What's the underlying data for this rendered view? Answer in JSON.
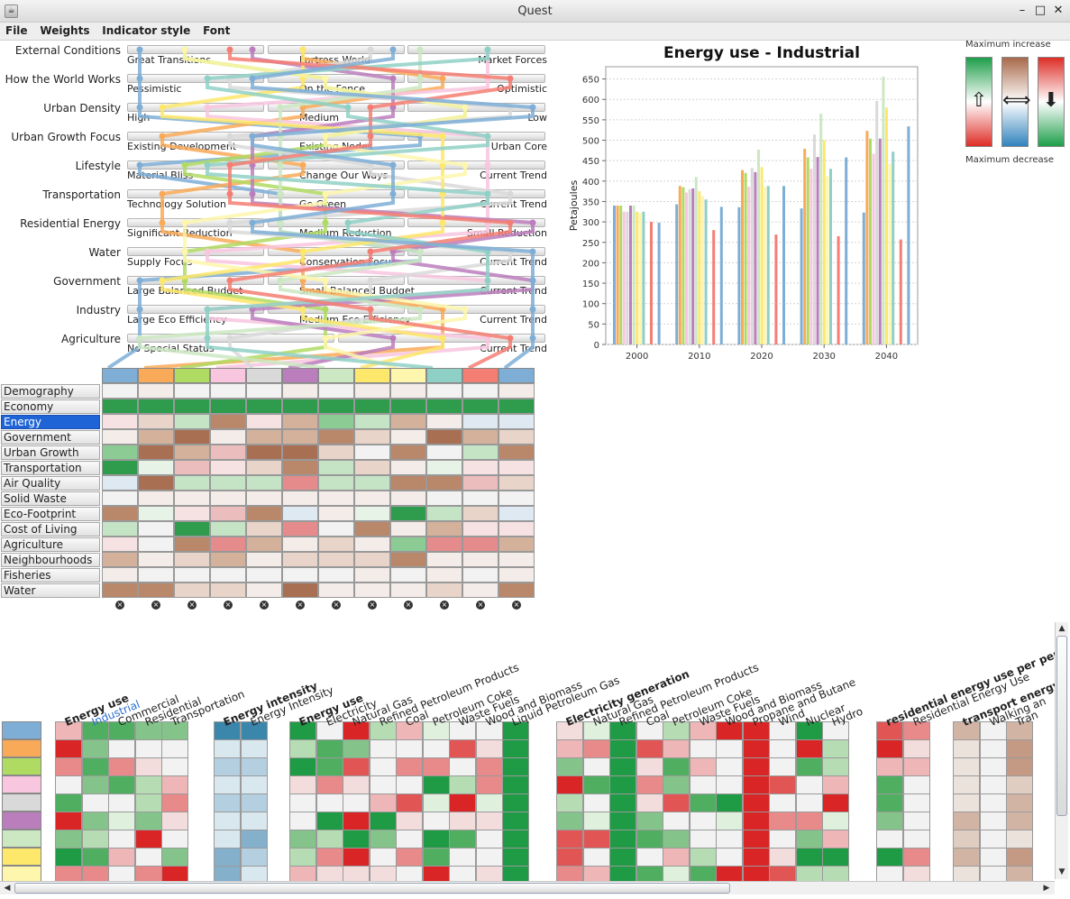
{
  "window": {
    "title": "Quest"
  },
  "menu": [
    "File",
    "Weights",
    "Indicator style",
    "Font"
  ],
  "scenario_factors": [
    {
      "label": "External Conditions",
      "options": [
        "Great Transitions",
        "Fortress World",
        "Market Forces"
      ]
    },
    {
      "label": "How the World Works",
      "options": [
        "Pessimistic",
        "On the Fence",
        "Optimistic"
      ]
    },
    {
      "label": "Urban Density",
      "options": [
        "High",
        "Medium",
        "Low"
      ]
    },
    {
      "label": "Urban Growth Focus",
      "options": [
        "Existing Development",
        "Existing Nodes",
        "Urban Core"
      ]
    },
    {
      "label": "Lifestyle",
      "options": [
        "Material Bliss",
        "Change Our Ways",
        "Current Trend"
      ]
    },
    {
      "label": "Transportation",
      "options": [
        "Technology Solution",
        "Go Green",
        "Current Trend"
      ]
    },
    {
      "label": "Residential Energy",
      "options": [
        "Significant Reduction",
        "Medium Reduction",
        "Small Reduction"
      ]
    },
    {
      "label": "Water",
      "options": [
        "Supply Focus",
        "Conservation Focus",
        "Current Trend"
      ]
    },
    {
      "label": "Government",
      "options": [
        "Large Balanced Budget",
        "Small Balanced Budget",
        "Current Trend"
      ]
    },
    {
      "label": "Industry",
      "options": [
        "Large Eco Efficiency",
        "Medium Eco Efficiency",
        "Current Trend"
      ]
    },
    {
      "label": "Agriculture",
      "options": [
        "No Special Status",
        "Current Trend"
      ]
    }
  ],
  "scenario_colors": [
    "#7eaed6",
    "#f9aa58",
    "#b0db63",
    "#f8c6df",
    "#d9d9d9",
    "#bb7ebd",
    "#cbe8c2",
    "#fde86b",
    "#fdf6ac",
    "#8fd0c6",
    "#f47e73",
    "#7eaed6"
  ],
  "indicator_categories": [
    "Demography",
    "Economy",
    "Energy",
    "Government",
    "Urban Growth",
    "Transportation",
    "Air Quality",
    "Solid Waste",
    "Eco-Footprint",
    "Cost of Living",
    "Agriculture",
    "Neighbourhoods",
    "Fisheries",
    "Water"
  ],
  "selected_category": "Energy",
  "chart_data": {
    "type": "bar",
    "title": "Energy use - Industrial",
    "xlabel": "",
    "ylabel": "Petajoules",
    "ylim": [
      0,
      680
    ],
    "yticks": [
      0,
      50,
      100,
      150,
      200,
      250,
      300,
      350,
      400,
      450,
      500,
      550,
      600,
      650
    ],
    "categories": [
      "2000",
      "2010",
      "2020",
      "2030",
      "2040"
    ],
    "series": [
      {
        "color": "#7eaed6",
        "values": [
          340,
          343,
          336,
          333,
          323
        ]
      },
      {
        "color": "#f9aa58",
        "values": [
          340,
          388,
          427,
          479,
          523
        ]
      },
      {
        "color": "#b0db63",
        "values": [
          340,
          385,
          420,
          458,
          504
        ]
      },
      {
        "color": "#f8c6df",
        "values": [
          325,
          372,
          386,
          430,
          467
        ]
      },
      {
        "color": "#d9d9d9",
        "values": [
          325,
          380,
          432,
          514,
          596
        ]
      },
      {
        "color": "#bb7ebd",
        "values": [
          340,
          382,
          422,
          459,
          504
        ]
      },
      {
        "color": "#cbe8c2",
        "values": [
          340,
          410,
          477,
          565,
          656
        ]
      },
      {
        "color": "#fde86b",
        "values": [
          325,
          375,
          434,
          500,
          580
        ]
      },
      {
        "color": "#fdf6ac",
        "values": [
          322,
          363,
          386,
          412,
          442
        ]
      },
      {
        "color": "#8fd0c6",
        "values": [
          325,
          355,
          388,
          430,
          472
        ]
      },
      {
        "color": "#f47e73",
        "values": [
          300,
          280,
          269,
          265,
          257
        ]
      },
      {
        "color": "#7eaed6",
        "values": [
          298,
          337,
          388,
          458,
          534
        ]
      }
    ]
  },
  "trend_legend": {
    "top": "Maximum increase",
    "bottom": "Maximum decrease"
  },
  "detail_headers": [
    {
      "text": "Energy use",
      "bold": true
    },
    {
      "text": "Industrial",
      "link": true
    },
    {
      "text": "Commercial"
    },
    {
      "text": "Residential"
    },
    {
      "text": "Transportation"
    },
    {
      "text": "Energy intensity",
      "bold": true
    },
    {
      "text": "Energy Intensity"
    },
    {
      "text": "Energy use",
      "bold": true
    },
    {
      "text": "Electricity"
    },
    {
      "text": "Natural Gas"
    },
    {
      "text": "Refined Petroleum Products"
    },
    {
      "text": "Coal"
    },
    {
      "text": "Petroleum Coke"
    },
    {
      "text": "Waste Fuels"
    },
    {
      "text": "Wood and Biomass"
    },
    {
      "text": "Liquid Petroleum Gas"
    },
    {
      "text": "Electricity generation",
      "bold": true
    },
    {
      "text": "Natural Gas"
    },
    {
      "text": "Refined Petroleum Products"
    },
    {
      "text": "Coal"
    },
    {
      "text": "Petroleum Coke"
    },
    {
      "text": "Waste Fuels"
    },
    {
      "text": "Wood and Biomass"
    },
    {
      "text": "Propane and Butane"
    },
    {
      "text": "Wind"
    },
    {
      "text": "Nuclear"
    },
    {
      "text": "Hydro"
    },
    {
      "text": "residential energy use per person",
      "bold": true
    },
    {
      "text": "Residential Energy Use"
    },
    {
      "text": "transport energy u",
      "bold": true
    },
    {
      "text": "Walking an"
    },
    {
      "text": "Tran"
    }
  ]
}
